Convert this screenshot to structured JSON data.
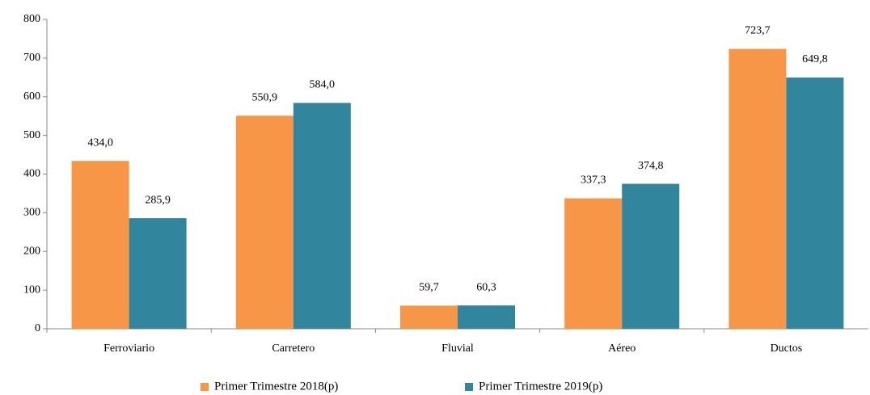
{
  "chart_data": {
    "type": "bar",
    "categories": [
      "Ferroviario",
      "Carretero",
      "Fluvial",
      "Aéreo",
      "Ductos"
    ],
    "series": [
      {
        "name": "Primer Trimestre 2018(p)",
        "color": "#f79646",
        "values": [
          434.0,
          550.9,
          59.7,
          337.3,
          723.7
        ],
        "value_labels": [
          "434,0",
          "550,9",
          "59,7",
          "337,3",
          "723,7"
        ]
      },
      {
        "name": "Primer Trimestre 2019(p)",
        "color": "#31859c",
        "values": [
          285.9,
          584.0,
          60.3,
          374.8,
          649.8
        ],
        "value_labels": [
          "285,9",
          "584,0",
          "60,3",
          "374,8",
          "649,8"
        ]
      }
    ],
    "ylim": [
      0,
      800
    ],
    "yticks": [
      0,
      100,
      200,
      300,
      400,
      500,
      600,
      700,
      800
    ],
    "grid": false,
    "legend": "bottom"
  }
}
